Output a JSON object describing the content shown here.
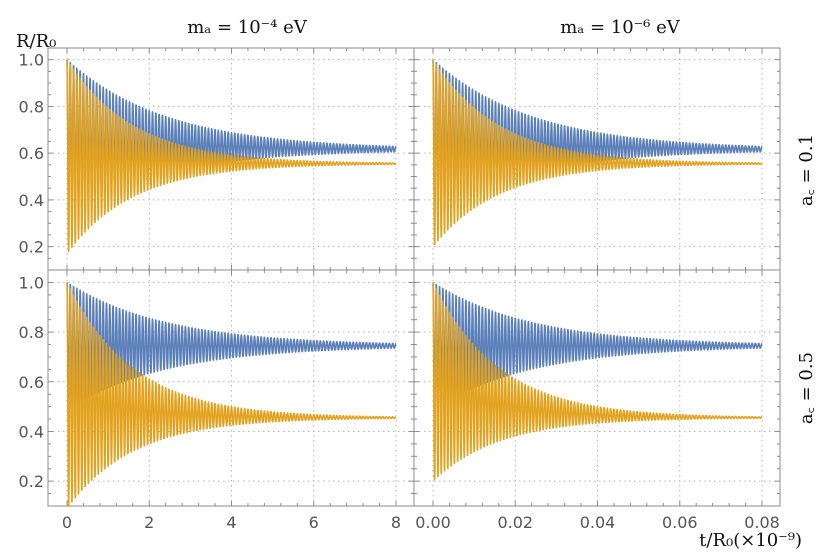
{
  "figure": {
    "y_axis_label": "R/R₀",
    "x_axis_label": "t/R₀(×10⁻⁹)",
    "column_titles": [
      "mₐ = 10⁻⁴ eV",
      "mₐ = 10⁻⁶ eV"
    ],
    "row_titles": [
      "a꜀ = 0.1",
      "a꜀ = 0.5"
    ]
  },
  "colors": {
    "series_blue": "#5b7fb9",
    "series_orange": "#e2a21e",
    "grid": "#b5b5b5",
    "frame": "#8c8c8c"
  },
  "chart_data": [
    {
      "type": "line",
      "panel": "top-left",
      "column_title": "m_a = 10^-4 eV",
      "row_title": "a_c = 0.1",
      "xlim": [
        0,
        8
      ],
      "ylim": [
        0.1,
        1.05
      ],
      "xticks": [
        "0",
        "2",
        "4",
        "6",
        "8"
      ],
      "yticks": [
        "0.2",
        "0.4",
        "0.6",
        "0.8",
        "1.0"
      ],
      "series": [
        {
          "name": "blue",
          "start": 1.0,
          "envelope_min_start": 0.36,
          "final": 0.615,
          "decay_fraction": 0.3,
          "oscillations": 100
        },
        {
          "name": "orange",
          "start": 1.0,
          "envelope_min_start": 0.17,
          "final": 0.555,
          "decay_fraction": 0.2,
          "oscillations": 100
        }
      ]
    },
    {
      "type": "line",
      "panel": "top-right",
      "column_title": "m_a = 10^-6 eV",
      "row_title": "a_c = 0.1",
      "xlim": [
        0,
        0.08
      ],
      "ylim": [
        0.1,
        1.05
      ],
      "xticks": [
        "0.00",
        "0.02",
        "0.04",
        "0.06",
        "0.08"
      ],
      "yticks": [
        "0.2",
        "0.4",
        "0.6",
        "0.8",
        "1.0"
      ],
      "series": [
        {
          "name": "blue",
          "start": 1.0,
          "envelope_min_start": 0.36,
          "final": 0.615,
          "decay_fraction": 0.3,
          "oscillations": 100
        },
        {
          "name": "orange",
          "start": 1.0,
          "envelope_min_start": 0.2,
          "final": 0.555,
          "decay_fraction": 0.2,
          "oscillations": 100
        }
      ]
    },
    {
      "type": "line",
      "panel": "bottom-left",
      "column_title": "m_a = 10^-4 eV",
      "row_title": "a_c = 0.5",
      "xlim": [
        0,
        8
      ],
      "ylim": [
        0.1,
        1.05
      ],
      "xticks": [
        "0",
        "2",
        "4",
        "6",
        "8"
      ],
      "yticks": [
        "0.2",
        "0.4",
        "0.6",
        "0.8",
        "1.0"
      ],
      "series": [
        {
          "name": "blue",
          "start": 1.0,
          "envelope_min_start": 0.49,
          "final": 0.745,
          "decay_fraction": 0.3,
          "oscillations": 100
        },
        {
          "name": "orange",
          "start": 1.0,
          "envelope_min_start": 0.09,
          "final": 0.455,
          "decay_fraction": 0.2,
          "oscillations": 100
        }
      ]
    },
    {
      "type": "line",
      "panel": "bottom-right",
      "column_title": "m_a = 10^-6 eV",
      "row_title": "a_c = 0.5",
      "xlim": [
        0,
        0.08
      ],
      "ylim": [
        0.1,
        1.05
      ],
      "xticks": [
        "0.00",
        "0.02",
        "0.04",
        "0.06",
        "0.08"
      ],
      "yticks": [
        "0.2",
        "0.4",
        "0.6",
        "0.8",
        "1.0"
      ],
      "series": [
        {
          "name": "blue",
          "start": 1.0,
          "envelope_min_start": 0.49,
          "final": 0.745,
          "decay_fraction": 0.3,
          "oscillations": 100
        },
        {
          "name": "orange",
          "start": 1.0,
          "envelope_min_start": 0.2,
          "final": 0.455,
          "decay_fraction": 0.2,
          "oscillations": 100
        }
      ]
    }
  ]
}
